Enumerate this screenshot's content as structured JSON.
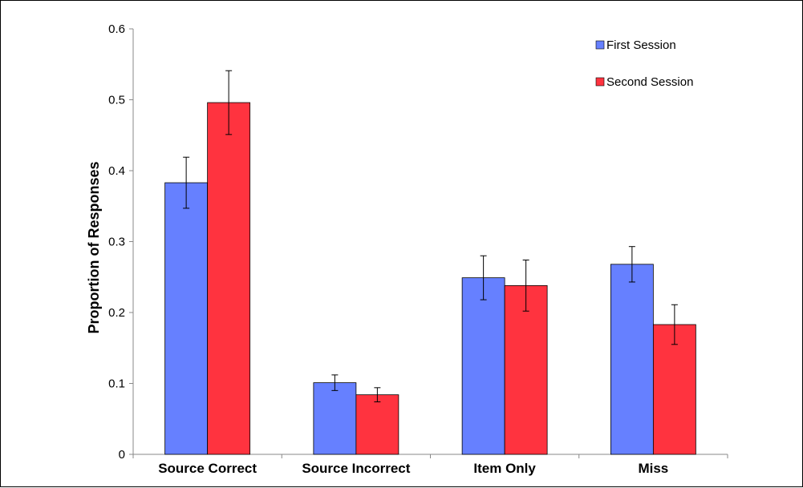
{
  "chart_data": {
    "type": "bar",
    "title": "",
    "xlabel": "",
    "ylabel": "Proportion of Responses",
    "ylim": [
      0,
      0.6
    ],
    "yticks": [
      0,
      0.1,
      0.2,
      0.3,
      0.4,
      0.5,
      0.6
    ],
    "ytick_labels": [
      "0",
      "0.1",
      "0.2",
      "0.3",
      "0.4",
      "0.5",
      "0.6"
    ],
    "categories": [
      "Source Correct",
      "Source Incorrect",
      "Item Only",
      "Miss"
    ],
    "series": [
      {
        "name": "First Session",
        "color": "#6680ff",
        "values": [
          0.383,
          0.101,
          0.249,
          0.268
        ],
        "errors": [
          0.036,
          0.011,
          0.031,
          0.025
        ]
      },
      {
        "name": "Second Session",
        "color": "#ff333f",
        "values": [
          0.496,
          0.084,
          0.238,
          0.183
        ],
        "errors": [
          0.045,
          0.01,
          0.036,
          0.028
        ]
      }
    ],
    "grid": false,
    "legend_position": "top-right"
  }
}
